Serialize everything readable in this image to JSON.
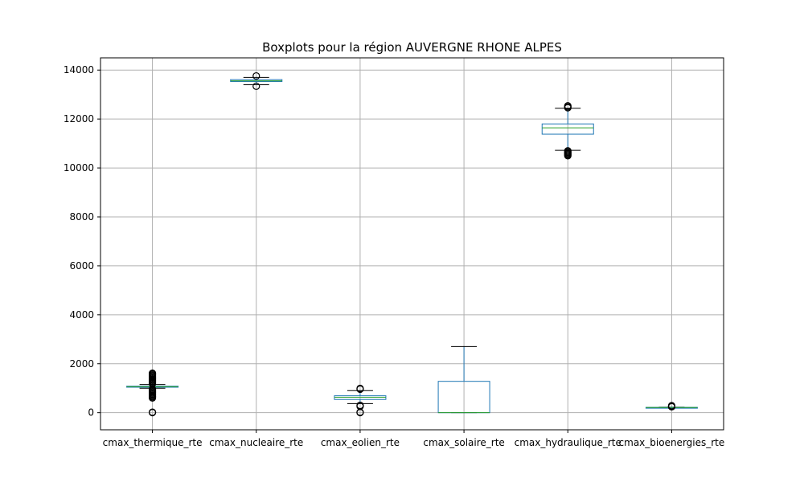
{
  "chart_data": {
    "type": "box",
    "title": "Boxplots pour la région AUVERGNE RHONE ALPES",
    "xlabel": "",
    "ylabel": "",
    "ylim": [
      -700,
      14500
    ],
    "yticks": [
      0,
      2000,
      4000,
      6000,
      8000,
      10000,
      12000,
      14000
    ],
    "grid": true,
    "colors": {
      "box": "#1f77b4",
      "median": "#2ca02c",
      "whisker": "#1f77b4",
      "cap": "#000000",
      "grid": "#b0b0b0"
    },
    "categories": [
      "cmax_thermique_rte",
      "cmax_nucleaire_rte",
      "cmax_eolien_rte",
      "cmax_solaire_rte",
      "cmax_hydraulique_rte",
      "cmax_bioenergies_rte"
    ],
    "boxes": [
      {
        "name": "cmax_thermique_rte",
        "whislo": 1000,
        "q1": 1040,
        "median": 1060,
        "q3": 1080,
        "whishi": 1150,
        "fliers": [
          0,
          20,
          600,
          640,
          680,
          720,
          760,
          800,
          840,
          880,
          920,
          960,
          1180,
          1220,
          1260,
          1300,
          1340,
          1380,
          1420,
          1460,
          1500,
          1540,
          1580,
          1610
        ]
      },
      {
        "name": "cmax_nucleaire_rte",
        "whislo": 13400,
        "q1": 13530,
        "median": 13560,
        "q3": 13610,
        "whishi": 13700,
        "fliers": [
          13340,
          13760
        ]
      },
      {
        "name": "cmax_eolien_rte",
        "whislo": 370,
        "q1": 540,
        "median": 630,
        "q3": 690,
        "whishi": 900,
        "fliers": [
          0,
          20,
          260,
          300,
          960,
          990
        ]
      },
      {
        "name": "cmax_solaire_rte",
        "whislo": 0,
        "q1": 0,
        "median": 0,
        "q3": 1280,
        "whishi": 2700,
        "fliers": []
      },
      {
        "name": "cmax_hydraulique_rte",
        "whislo": 10720,
        "q1": 11380,
        "median": 11640,
        "q3": 11800,
        "whishi": 12440,
        "fliers": [
          10500,
          10540,
          10580,
          10620,
          10660,
          10700,
          12460,
          12500,
          12540
        ]
      },
      {
        "name": "cmax_bioenergies_rte",
        "whislo": 190,
        "q1": 200,
        "median": 210,
        "q3": 215,
        "whishi": 225,
        "fliers": [
          240,
          255,
          270,
          285
        ]
      }
    ]
  }
}
